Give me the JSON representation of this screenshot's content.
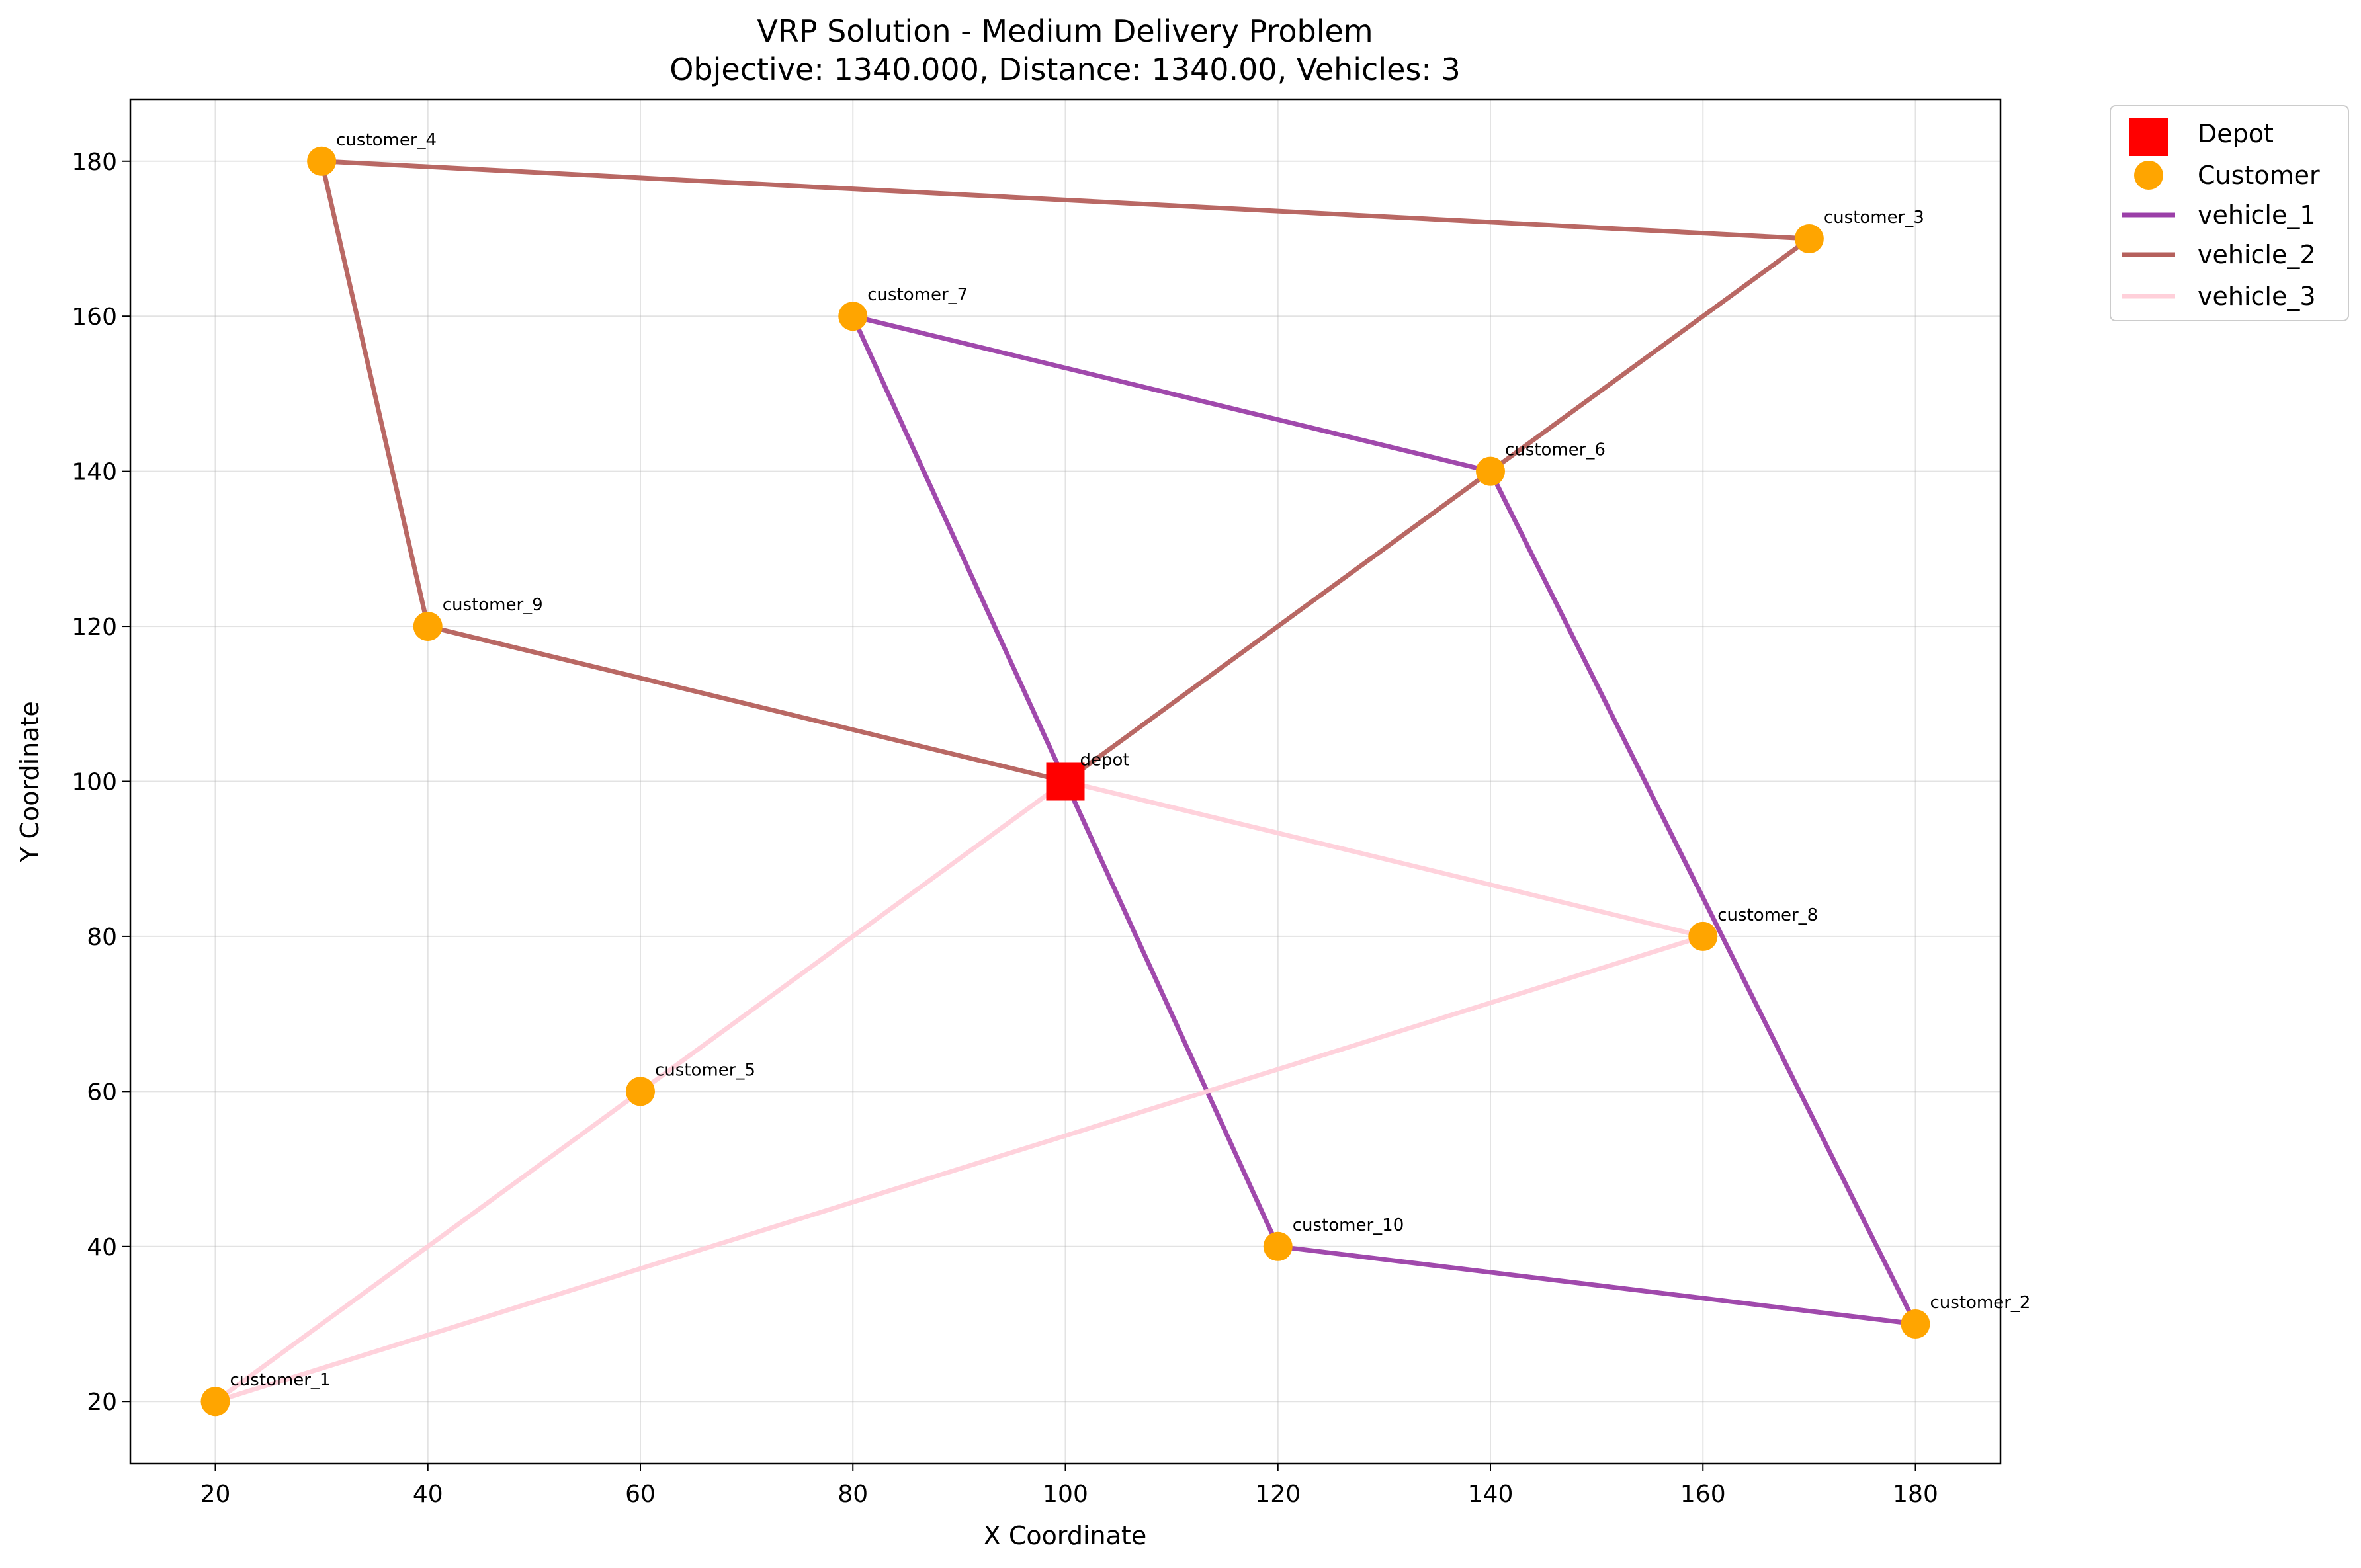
{
  "chart_data": {
    "type": "scatter",
    "title": "VRP Solution - Medium Delivery Problem",
    "subtitle": "Objective: 1340.000, Distance: 1340.00, Vehicles: 3",
    "xlabel": "X Coordinate",
    "ylabel": "Y Coordinate",
    "xlim": [
      12,
      188
    ],
    "ylim": [
      12,
      188
    ],
    "xticks": [
      20,
      40,
      60,
      80,
      100,
      120,
      140,
      160,
      180
    ],
    "yticks": [
      20,
      40,
      60,
      80,
      100,
      120,
      140,
      160,
      180
    ],
    "grid": true,
    "legend_position": "outside top-right",
    "depot": {
      "name": "depot",
      "x": 100,
      "y": 100,
      "color": "#ff0000"
    },
    "customers": [
      {
        "name": "customer_1",
        "x": 20,
        "y": 20
      },
      {
        "name": "customer_2",
        "x": 180,
        "y": 30
      },
      {
        "name": "customer_3",
        "x": 170,
        "y": 170
      },
      {
        "name": "customer_4",
        "x": 30,
        "y": 180
      },
      {
        "name": "customer_5",
        "x": 60,
        "y": 60
      },
      {
        "name": "customer_6",
        "x": 140,
        "y": 140
      },
      {
        "name": "customer_7",
        "x": 80,
        "y": 160
      },
      {
        "name": "customer_8",
        "x": 160,
        "y": 80
      },
      {
        "name": "customer_9",
        "x": 40,
        "y": 120
      },
      {
        "name": "customer_10",
        "x": 120,
        "y": 40
      }
    ],
    "customer_color": "#ffa500",
    "routes": [
      {
        "name": "vehicle_1",
        "color": "#9b3fa8",
        "x": [
          100,
          80,
          140,
          180,
          120,
          100
        ],
        "y": [
          100,
          160,
          140,
          30,
          40,
          100
        ]
      },
      {
        "name": "vehicle_2",
        "color": "#b5605c",
        "x": [
          100,
          140,
          170,
          30,
          40,
          100
        ],
        "y": [
          100,
          140,
          170,
          180,
          120,
          100
        ]
      },
      {
        "name": "vehicle_3",
        "color": "#ffd0da",
        "x": [
          100,
          160,
          20,
          60,
          100
        ],
        "y": [
          100,
          80,
          20,
          60,
          100
        ]
      }
    ],
    "legend": [
      "Depot",
      "Customer",
      "vehicle_1",
      "vehicle_2",
      "vehicle_3"
    ]
  }
}
